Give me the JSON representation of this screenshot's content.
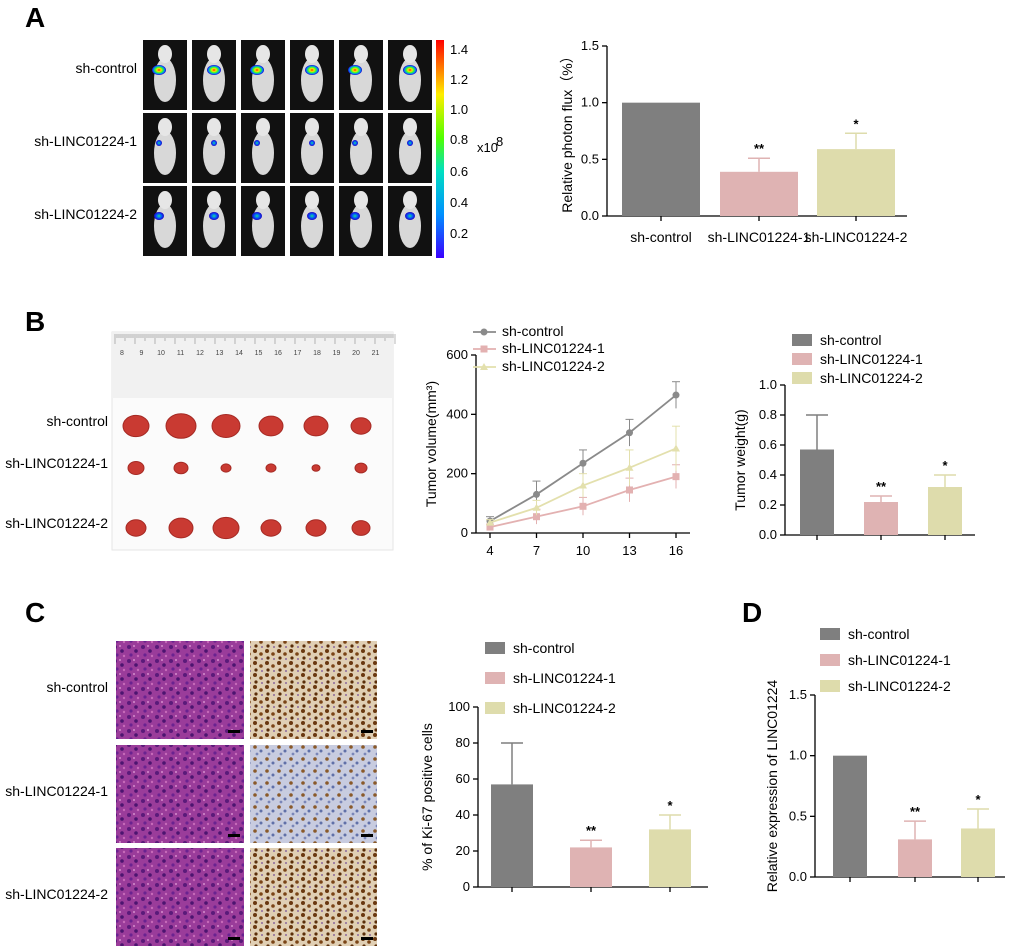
{
  "panels": {
    "a": "A",
    "b": "B",
    "c": "C",
    "d": "D"
  },
  "groups": [
    "sh-control",
    "sh-LINC01224-1",
    "sh-LINC01224-2"
  ],
  "colors": {
    "control": "#7f7f7f",
    "kd1": "#dfb3b3",
    "kd2": "#dedcac",
    "line_control": "#8a8a8a",
    "line_kd1": "#e3b1b1",
    "line_kd2": "#e3e0ad"
  },
  "imaging": {
    "colorbar_ticks": [
      "1.4",
      "1.2",
      "1.0",
      "0.8",
      "0.6",
      "0.4",
      "0.2"
    ],
    "colorbar_unit": "x10",
    "colorbar_exp": "8"
  },
  "ruler_ticks": [
    "8",
    "9",
    "10",
    "11",
    "12",
    "13",
    "14",
    "15",
    "16",
    "17",
    "18",
    "19",
    "20",
    "21"
  ],
  "chart_data": [
    {
      "id": "photon_flux",
      "type": "bar",
      "categories": [
        "sh-control",
        "sh-LINC01224-1",
        "sh-LINC01224-2"
      ],
      "values": [
        1.0,
        0.39,
        0.59
      ],
      "errors": [
        0,
        0.12,
        0.14
      ],
      "significance": [
        "",
        "**",
        "*"
      ],
      "ylabel": "Relative photon flux（%）",
      "ylim": [
        0,
        1.5
      ],
      "yticks": [
        "0.0",
        "0.5",
        "1.0",
        "1.5"
      ]
    },
    {
      "id": "tumor_volume",
      "type": "line",
      "x": [
        4,
        7,
        10,
        13,
        16
      ],
      "xticks": [
        "4",
        "7",
        "10",
        "13",
        "16"
      ],
      "series": [
        {
          "name": "sh-control",
          "values": [
            40,
            130,
            235,
            338,
            465
          ],
          "errors": [
            15,
            45,
            45,
            45,
            45
          ]
        },
        {
          "name": "sh-LINC01224-1",
          "values": [
            20,
            55,
            90,
            145,
            190
          ],
          "errors": [
            10,
            25,
            30,
            40,
            40
          ]
        },
        {
          "name": "sh-LINC01224-2",
          "values": [
            35,
            85,
            160,
            220,
            285
          ],
          "errors": [
            10,
            25,
            40,
            60,
            75
          ]
        }
      ],
      "ylabel": "Tumor volume(mm³)",
      "ylim": [
        0,
        600
      ],
      "yticks": [
        "0",
        "200",
        "400",
        "600"
      ]
    },
    {
      "id": "tumor_weight",
      "type": "bar",
      "categories": [
        "sh-control",
        "sh-LINC01224-1",
        "sh-LINC01224-2"
      ],
      "values": [
        0.57,
        0.22,
        0.32
      ],
      "errors": [
        0.23,
        0.04,
        0.08
      ],
      "significance": [
        "",
        "**",
        "*"
      ],
      "ylabel": "Tumor weight(g)",
      "ylim": [
        0,
        1.0
      ],
      "yticks": [
        "0.0",
        "0.2",
        "0.4",
        "0.6",
        "0.8",
        "1.0"
      ],
      "legend": [
        "sh-control",
        "sh-LINC01224-1",
        "sh-LINC01224-2"
      ]
    },
    {
      "id": "ki67",
      "type": "bar",
      "categories": [
        "sh-control",
        "sh-LINC01224-1",
        "sh-LINC01224-2"
      ],
      "values": [
        57,
        22,
        32
      ],
      "errors": [
        23,
        4,
        8
      ],
      "significance": [
        "",
        "**",
        "*"
      ],
      "ylabel": "% of Ki-67 positive cells",
      "ylim": [
        0,
        100
      ],
      "yticks": [
        "0",
        "20",
        "40",
        "60",
        "80",
        "100"
      ],
      "legend": [
        "sh-control",
        "sh-LINC01224-1",
        "sh-LINC01224-2"
      ]
    },
    {
      "id": "linc_expression",
      "type": "bar",
      "categories": [
        "sh-control",
        "sh-LINC01224-1",
        "sh-LINC01224-2"
      ],
      "values": [
        1.0,
        0.31,
        0.4
      ],
      "errors": [
        0,
        0.15,
        0.16
      ],
      "significance": [
        "",
        "**",
        "*"
      ],
      "ylabel": "Relative expression  of  LINC01224",
      "ylim": [
        0,
        1.5
      ],
      "yticks": [
        "0.0",
        "0.5",
        "1.0",
        "1.5"
      ],
      "legend": [
        "sh-control",
        "sh-LINC01224-1",
        "sh-LINC01224-2"
      ]
    }
  ]
}
